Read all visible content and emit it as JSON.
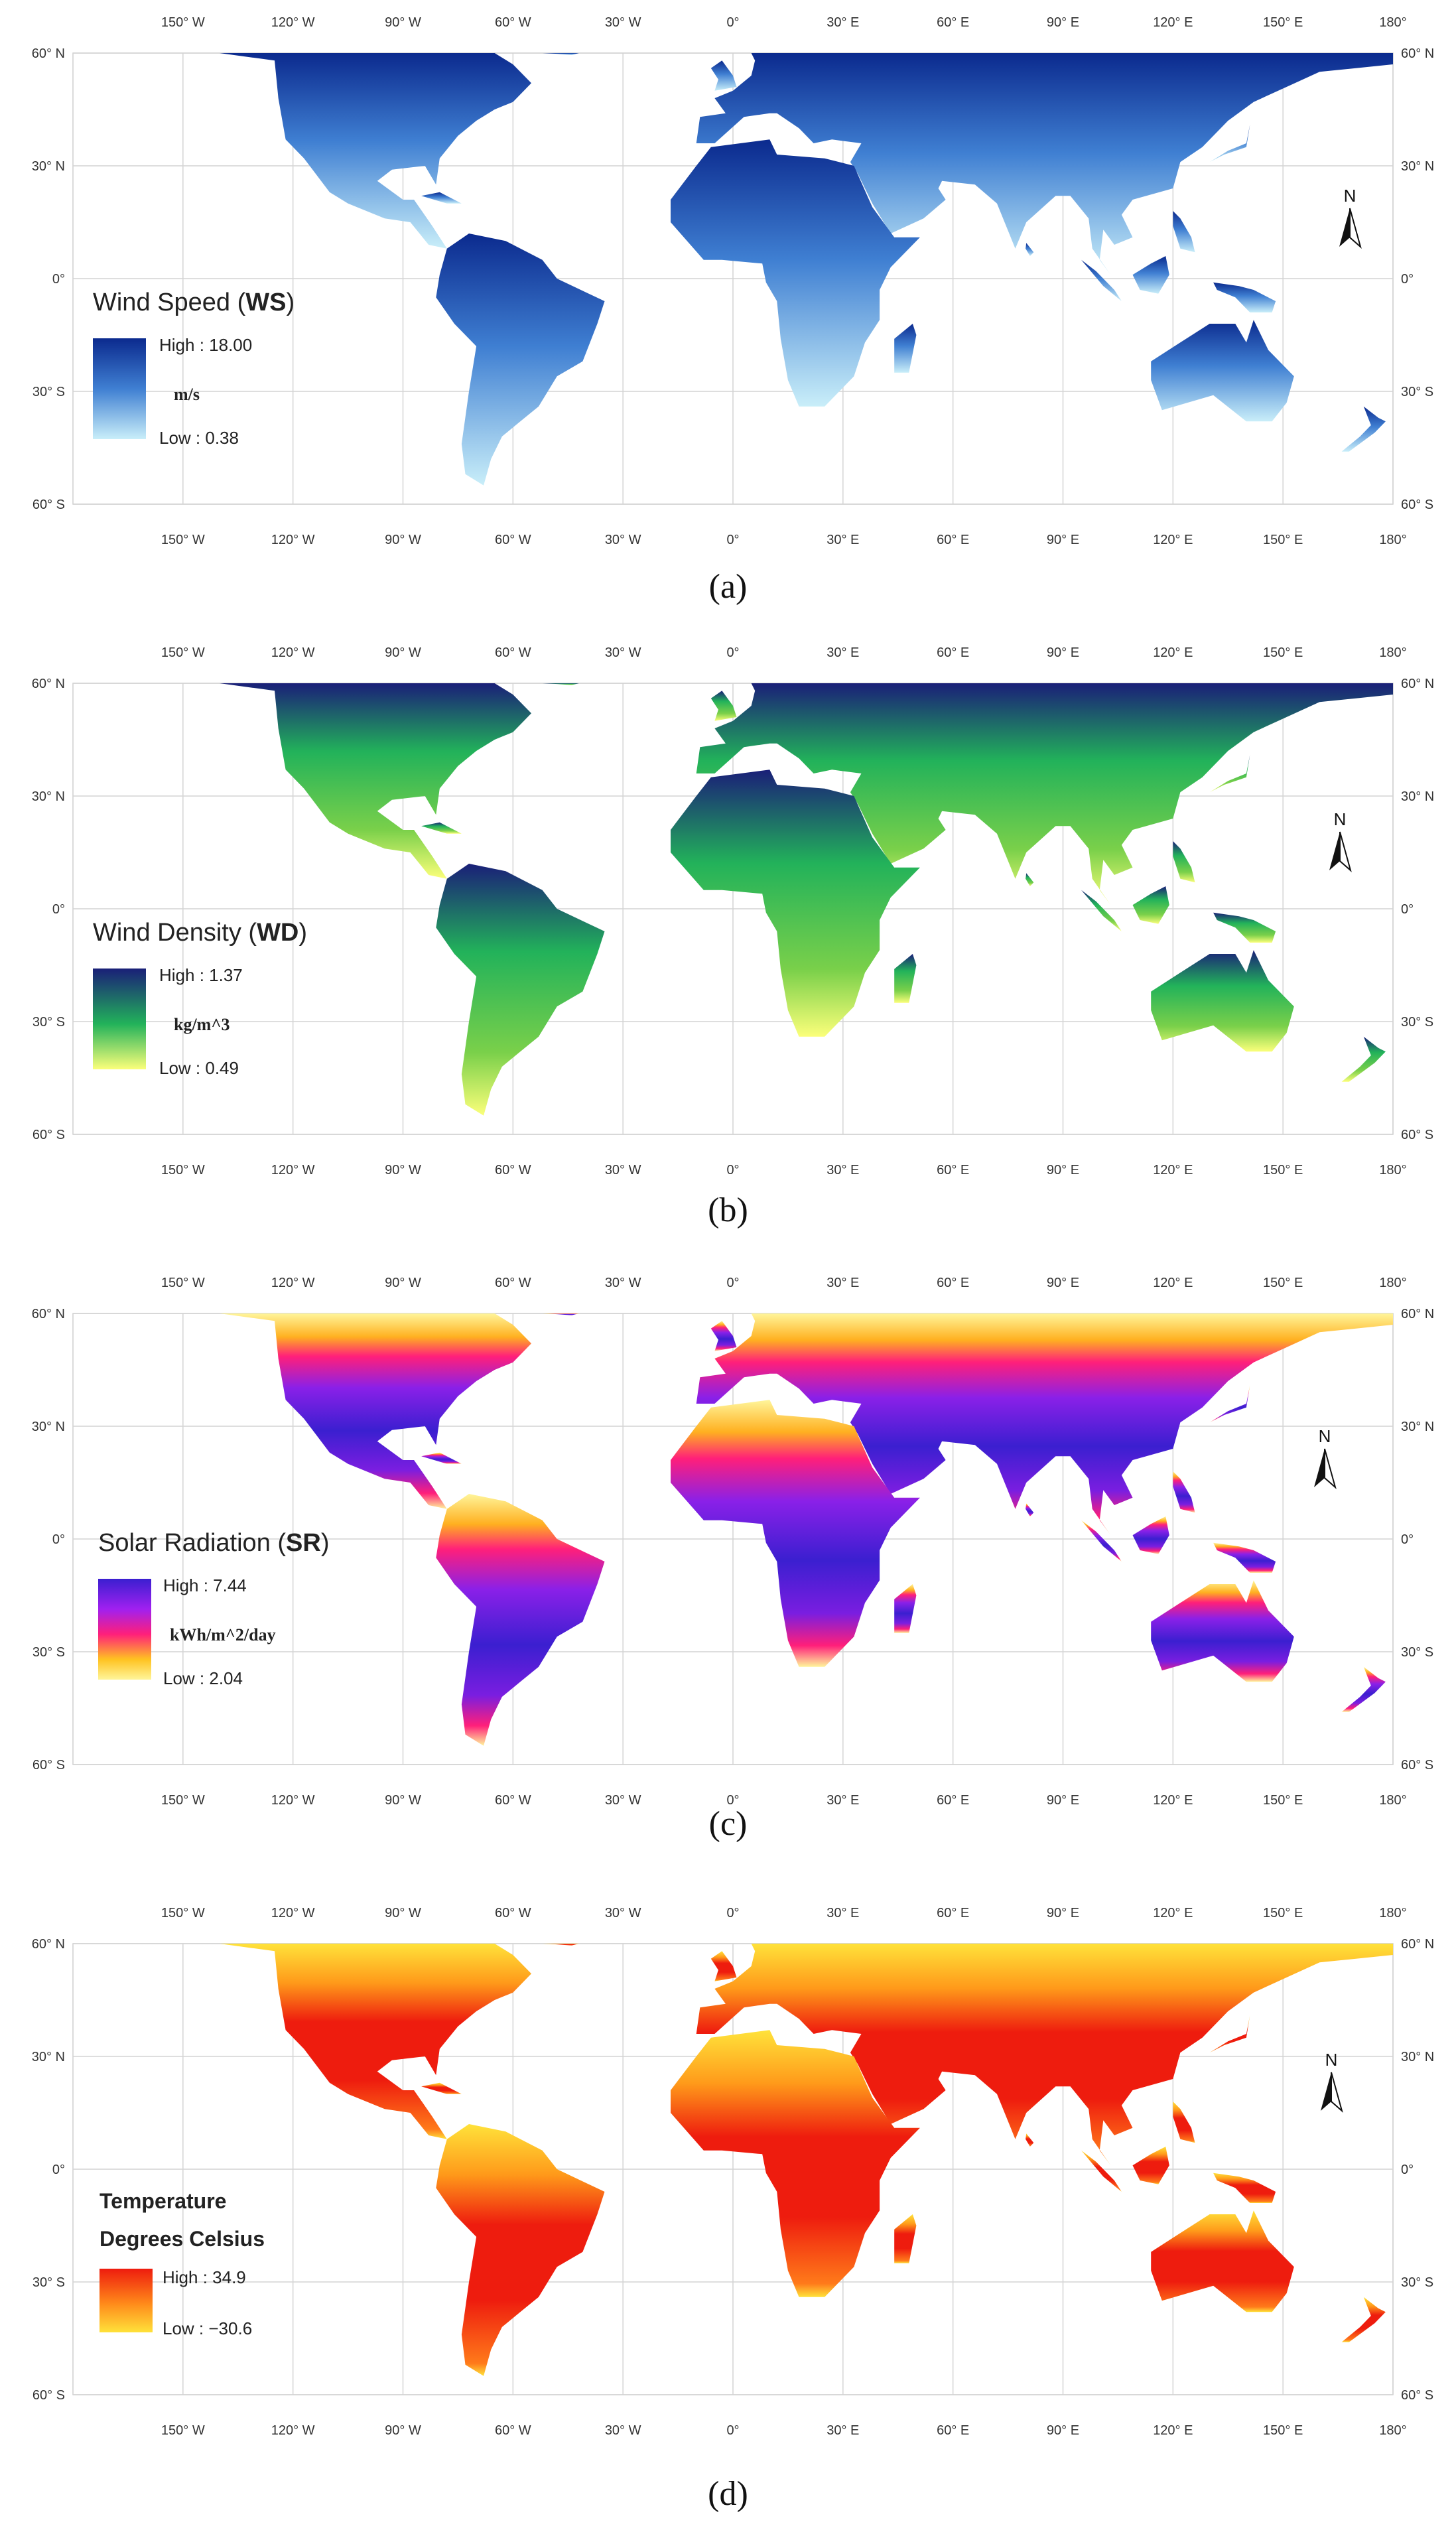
{
  "axes": {
    "lon_labels": [
      "150° W",
      "120° W",
      "90° W",
      "60° W",
      "30° W",
      "0°",
      "30° E",
      "60° E",
      "90° E",
      "120° E",
      "150° E",
      "180°"
    ],
    "lat_labels": [
      "60° N",
      "30° N",
      "0°",
      "30° S",
      "60° S"
    ]
  },
  "north_arrow": {
    "label": "N"
  },
  "panels": [
    {
      "caption": "(a)",
      "legend": {
        "title": "Wind Speed (",
        "title_bold": "WS",
        "title_end": ")",
        "high": "High : 18.00",
        "unit": "m/s",
        "low": "Low : 0.38"
      },
      "colors": {
        "land": "#3f7fd2",
        "high": "#0b2a8e",
        "low": "#c9eef9"
      }
    },
    {
      "caption": "(b)",
      "legend": {
        "title": "Wind Density (",
        "title_bold": "WD",
        "title_end": ")",
        "high": "High : 1.37",
        "unit": "kg/m^3",
        "low": "Low : 0.49"
      },
      "colors": {
        "land": "#3aaa55",
        "high": "#1a1f78",
        "mid": "#22b25a",
        "low": "#fbff7a"
      }
    },
    {
      "caption": "(c)",
      "legend": {
        "title": "Solar Radiation (",
        "title_bold": "SR",
        "title_end": ")",
        "high": "High : 7.44",
        "unit": "kWh/m^2/day",
        "low": "Low : 2.04"
      },
      "colors": {
        "land": "#7a1ee0",
        "high": "#3b1fd0",
        "mid": "#ff1f7a",
        "low": "#fff59a"
      }
    },
    {
      "caption": "(d)",
      "legend": {
        "title": "Temperature",
        "title_bold": "",
        "title_end": "",
        "subtitle": "Degrees Celsius",
        "high": "High : 34.9",
        "unit": "",
        "low": "Low : −30.6"
      },
      "colors": {
        "land": "#ea2a1a",
        "high": "#ee1c0e",
        "low": "#ffe23a"
      }
    }
  ]
}
